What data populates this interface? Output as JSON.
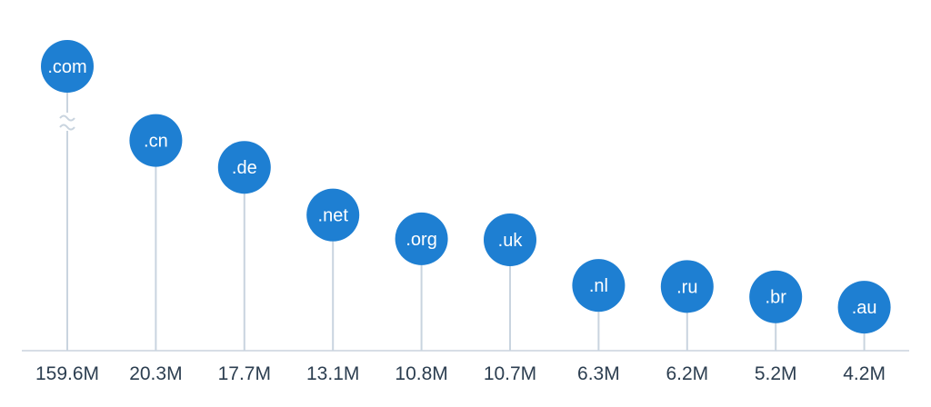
{
  "chart_data": {
    "type": "lollipop",
    "title": "",
    "xlabel": "",
    "ylabel": "",
    "axis_break": true,
    "categories": [
      ".com",
      ".cn",
      ".de",
      ".net",
      ".org",
      ".uk",
      ".nl",
      ".ru",
      ".br",
      ".au"
    ],
    "values": [
      159.6,
      20.3,
      17.7,
      13.1,
      10.8,
      10.7,
      6.3,
      6.2,
      5.2,
      4.2
    ],
    "value_labels": [
      "159.6M",
      "20.3M",
      "17.7M",
      "13.1M",
      "10.8M",
      "10.7M",
      "6.3M",
      "6.2M",
      "5.2M",
      "4.2M"
    ],
    "unit": "M"
  },
  "colors": {
    "accent": "#1e7fd2",
    "stem": "#c9d4df",
    "text": "#2c3e50"
  }
}
